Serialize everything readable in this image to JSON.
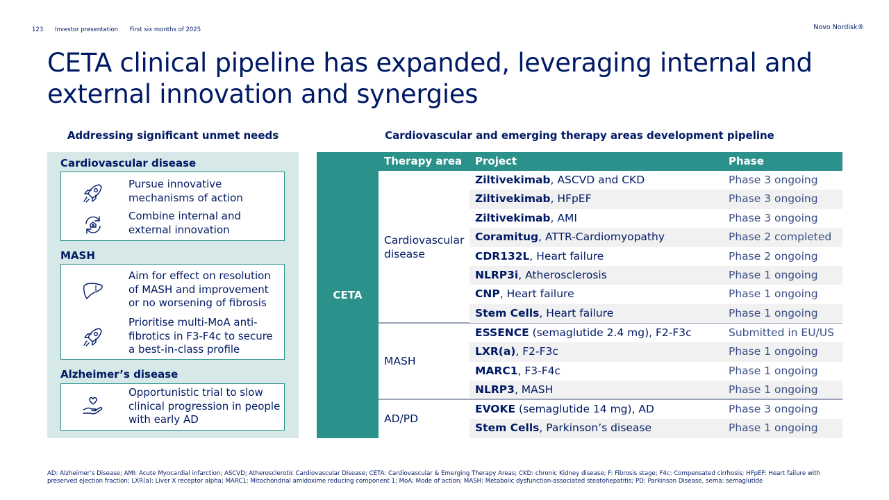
{
  "header": {
    "page_number": "123",
    "doc_type": "Investor presentation",
    "period": "First six months of 2025"
  },
  "brand": "Novo Nordisk®",
  "title": "CETA clinical pipeline has expanded, leveraging internal and external innovation and synergies",
  "left": {
    "heading": "Addressing significant unmet needs",
    "sections": [
      {
        "title": "Cardiovascular disease",
        "items": [
          {
            "icon": "rocket-icon",
            "text": "Pursue innovative mechanisms of action"
          },
          {
            "icon": "recycle-hand-icon",
            "text": "Combine internal and external innovation"
          }
        ]
      },
      {
        "title": "MASH",
        "items": [
          {
            "icon": "liver-icon",
            "text": "Aim for effect on resolution of MASH and improvement or no worsening of fibrosis"
          },
          {
            "icon": "rocket-icon",
            "text": "Prioritise multi-MoA anti-fibrotics in F3-F4c to secure a best-in-class profile"
          }
        ]
      },
      {
        "title": "Alzheimer’s disease",
        "items": [
          {
            "icon": "heart-hand-icon",
            "text": "Opportunistic trial to slow clinical progression in people with early AD"
          }
        ]
      }
    ]
  },
  "right": {
    "heading": "Cardiovascular and emerging therapy areas development pipeline",
    "ceta_label": "CETA",
    "columns": [
      "Therapy area",
      "Project",
      "Phase"
    ],
    "groups": [
      {
        "area": "Cardiovascular disease",
        "rows": [
          {
            "name": "Ziltivekimab",
            "detail": ", ASCVD and CKD",
            "phase": "Phase 3 ongoing"
          },
          {
            "name": "Ziltivekimab",
            "detail": ", HFpEF",
            "phase": "Phase 3 ongoing"
          },
          {
            "name": "Ziltivekimab",
            "detail": ", AMI",
            "phase": "Phase 3 ongoing"
          },
          {
            "name": "Coramitug",
            "detail": ", ATTR-Cardiomyopathy",
            "phase": "Phase 2 completed"
          },
          {
            "name": "CDR132L",
            "detail": ", Heart failure",
            "phase": "Phase 2 ongoing"
          },
          {
            "name": "NLRP3i",
            "detail": ", Atherosclerosis",
            "phase": "Phase 1 ongoing"
          },
          {
            "name": "CNP",
            "detail": ", Heart failure",
            "phase": "Phase 1 ongoing"
          },
          {
            "name": "Stem Cells",
            "detail": ", Heart failure",
            "phase": "Phase 1 ongoing"
          }
        ]
      },
      {
        "area": "MASH",
        "rows": [
          {
            "name": "ESSENCE",
            "detail": " (semaglutide 2.4 mg), F2-F3c",
            "phase": "Submitted in EU/US"
          },
          {
            "name": "LXR(a)",
            "detail": ", F2-F3c",
            "phase": "Phase 1 ongoing"
          },
          {
            "name": "MARC1",
            "detail": ", F3-F4c",
            "phase": "Phase 1 ongoing"
          },
          {
            "name": "NLRP3",
            "detail": ", MASH",
            "phase": "Phase 1 ongoing"
          }
        ]
      },
      {
        "area": "AD/PD",
        "rows": [
          {
            "name": "EVOKE",
            "detail": " (semaglutide 14 mg), AD",
            "phase": "Phase 3 ongoing"
          },
          {
            "name": "Stem Cells",
            "detail": ", Parkinson’s disease",
            "phase": "Phase 1 ongoing"
          }
        ]
      }
    ]
  },
  "footnote": "AD: Alzheimer’s Disease; AMI: Acute Myocardial infarction; ASCVD; Atherosclerotic Cardiovascular Disease; CETA: Cardiovascular & Emerging Therapy Areas; CKD: chronic Kidney disease; F: Fibrosis stage; F4c: Compensated cirrhosis; HFpEF: Heart failure with preserved ejection fraction; LXR(a): Liver X receptor alpha; MARC1: Mitochondrial amidoxime reducing component 1; MoA: Mode of action; MASH: Metabolic dysfunction-associated steatohepatitis; PD: Parkinson Disease, sema: semaglutide",
  "colors": {
    "navy": "#001965",
    "teal": "#2a918b",
    "panel": "#d6e9e8",
    "stripe": "#f1f1f1"
  }
}
